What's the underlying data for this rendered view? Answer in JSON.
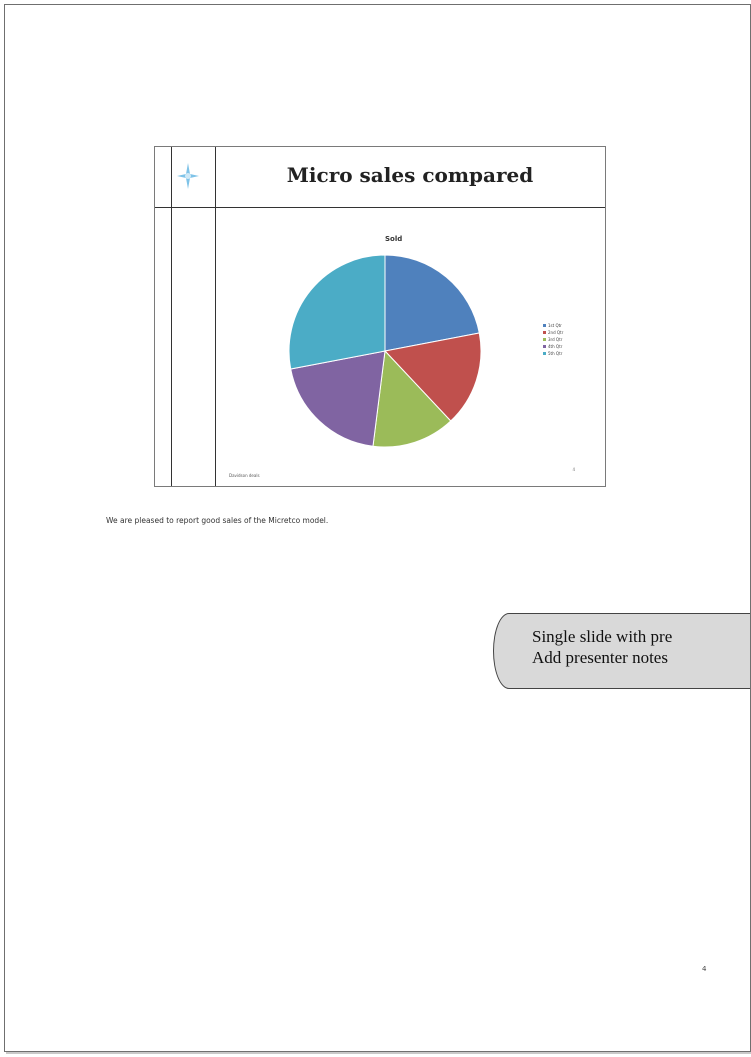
{
  "slide": {
    "title": "Micro sales compared",
    "footer_text": "Davidson deals",
    "number": "4"
  },
  "chart_data": {
    "type": "pie",
    "title": "Sold",
    "categories": [
      "1st Qtr",
      "2nd Qtr",
      "3rd Qtr",
      "4th Qtr",
      "5th Qtr"
    ],
    "values": [
      22,
      16,
      14,
      20,
      28
    ],
    "colors": [
      "#4f81bd",
      "#c0504d",
      "#9bbb59",
      "#8064a2",
      "#4bacc6"
    ],
    "legend_position": "right"
  },
  "notes": {
    "text": "We are pleased to report good sales of the Micretco model."
  },
  "callout": {
    "line1": "Single slide with pre",
    "line2": "Add presenter notes"
  },
  "page": {
    "number": "4"
  }
}
